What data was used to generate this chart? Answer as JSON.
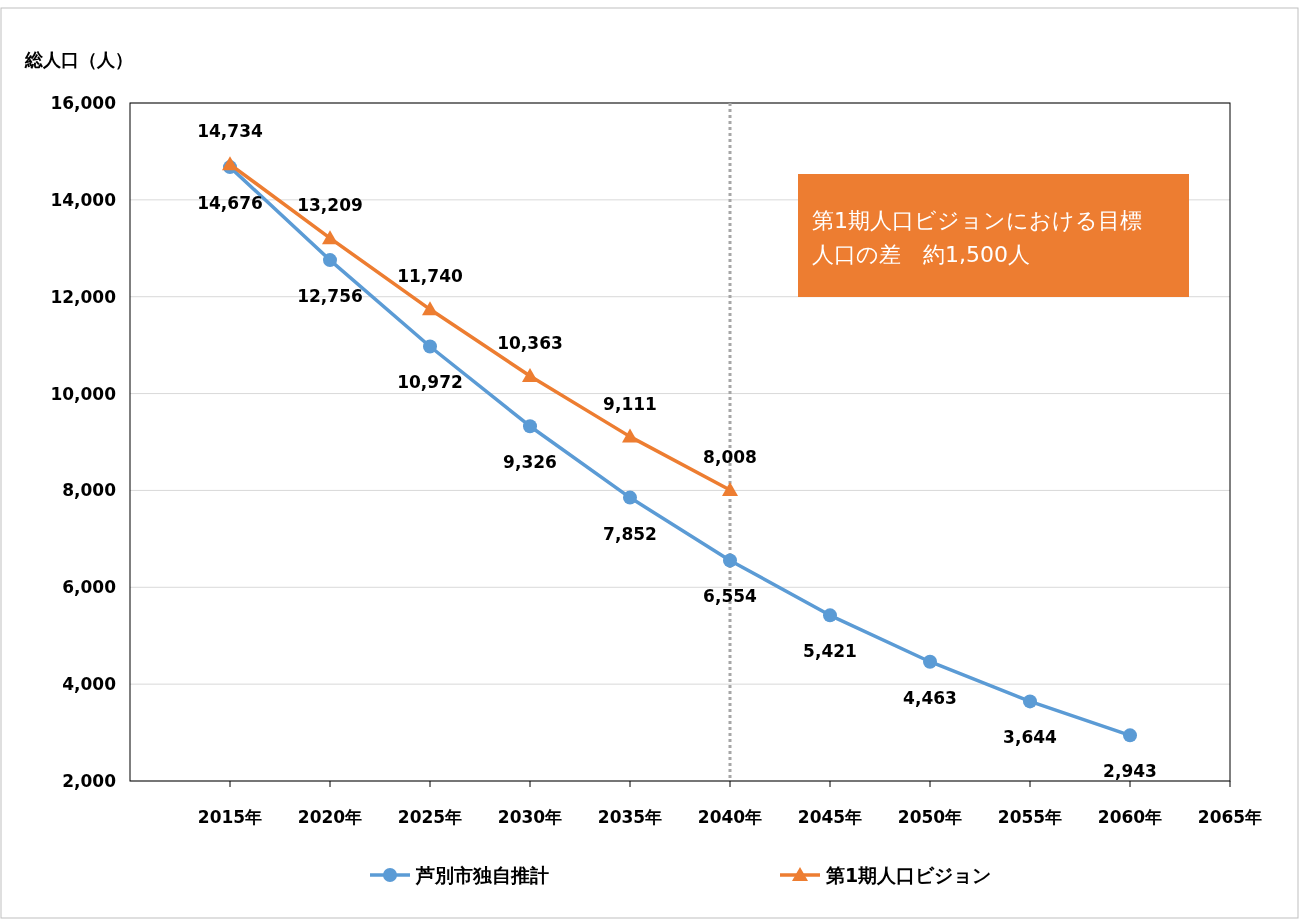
{
  "chart_data": {
    "type": "line",
    "ylabel": "総人口（人）",
    "categories": [
      "2015年",
      "2020年",
      "2025年",
      "2030年",
      "2035年",
      "2040年",
      "2045年",
      "2050年",
      "2055年",
      "2060年",
      "2065年"
    ],
    "series": [
      {
        "name": "芦別市独自推計",
        "color": "#5b9bd5",
        "marker": "circle",
        "values": [
          14676,
          12756,
          10972,
          9326,
          7852,
          6554,
          5421,
          4463,
          3644,
          2943,
          null
        ],
        "value_labels": [
          "14,676",
          "12,756",
          "10,972",
          "9,326",
          "7,852",
          "6,554",
          "5,421",
          "4,463",
          "3,644",
          "2,943",
          null
        ]
      },
      {
        "name": "第1期人口ビジョン",
        "color": "#ed7d31",
        "marker": "triangle",
        "values": [
          14734,
          13209,
          11740,
          10363,
          9111,
          8008,
          null,
          null,
          null,
          null,
          null
        ],
        "value_labels": [
          "14,734",
          "13,209",
          "11,740",
          "10,363",
          "9,111",
          "8,008",
          null,
          null,
          null,
          null,
          null
        ]
      }
    ],
    "ylim": [
      2000,
      16000
    ],
    "yticks": [
      {
        "value": 2000,
        "label": "2,000"
      },
      {
        "value": 4000,
        "label": "4,000"
      },
      {
        "value": 6000,
        "label": "6,000"
      },
      {
        "value": 8000,
        "label": "8,000"
      },
      {
        "value": 10000,
        "label": "10,000"
      },
      {
        "value": 12000,
        "label": "12,000"
      },
      {
        "value": 14000,
        "label": "14,000"
      },
      {
        "value": 16000,
        "label": "16,000"
      }
    ],
    "grid": "y",
    "legend": "bottom",
    "ref_lines": [
      {
        "axis": "x",
        "value": "2040年",
        "color": "#a6a6a6",
        "line_style": "dotted"
      }
    ],
    "annotations": [
      "第1期人口ビジョンにおける目標人口の差　約1,500人"
    ]
  }
}
